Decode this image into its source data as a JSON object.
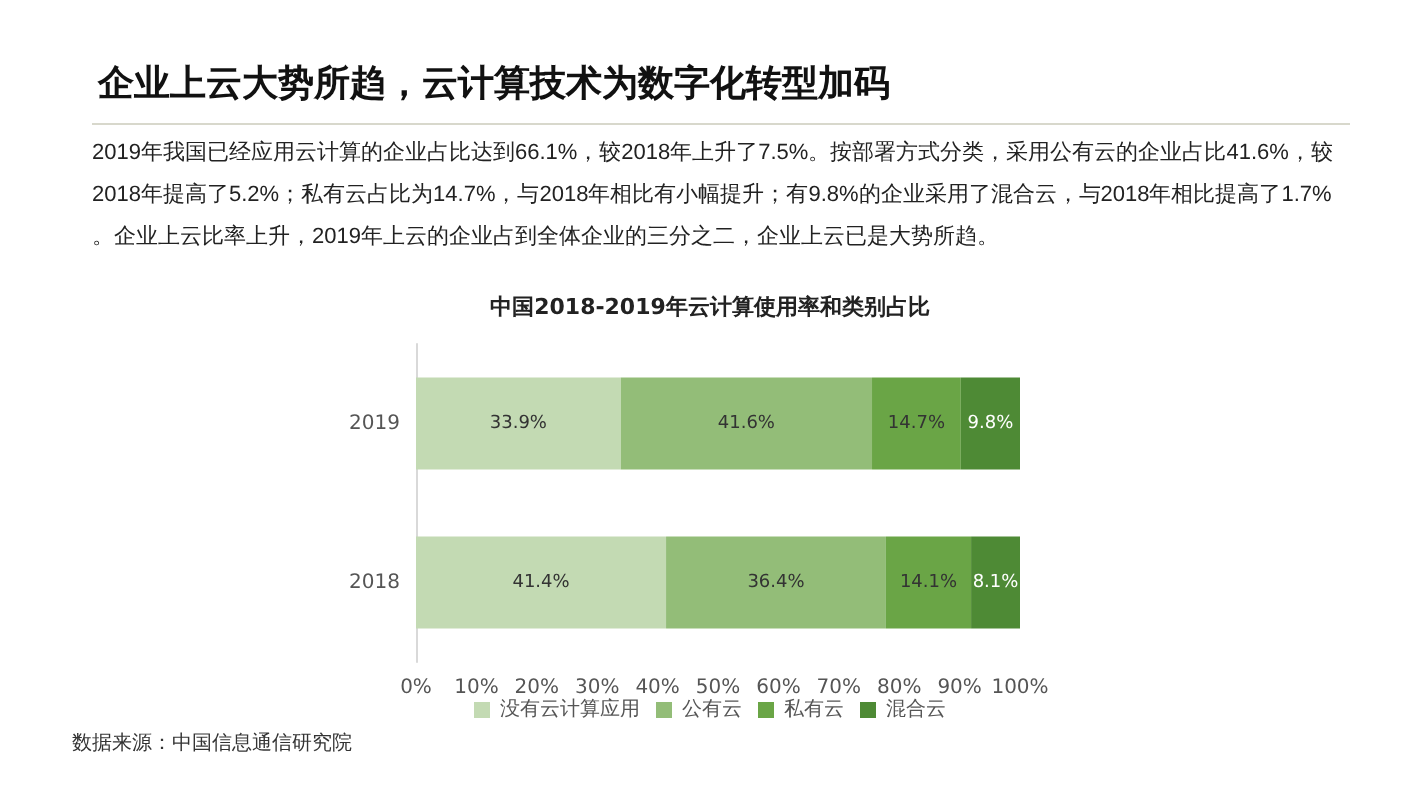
{
  "chart_data": {
    "type": "bar",
    "orientation": "horizontal",
    "stacked": true,
    "title": "企业上云大势所趋，云计算技术为数字化转型加码",
    "subtitle": "2019年我国已经应用云计算的企业占比达到66.1%，较2018年上升了7.5%。按部署方式分类，采用公有云的企业占比41.6%，较2018年提高了5.2%；私有云占比为14.7%，与2018年相比有小幅提升；有9.8%的企业采用了混合云，与2018年相比提高了1.7%。企业上云比率上升，2019年上云的企业占到全体企业的三分之二，企业上云已是大势所趋。",
    "annotations": [
      "中国2018-2019年云计算使用率和类别占比",
      "数据来源：中国信息通信研究院"
    ],
    "categories": [
      "2019",
      "2018"
    ],
    "series": [
      {
        "name": "没有云计算应用",
        "color": "#c3dab3",
        "values": [
          33.9,
          41.4
        ],
        "value_labels": [
          "33.9%",
          "41.4%"
        ]
      },
      {
        "name": "公有云",
        "color": "#93bd78",
        "values": [
          41.6,
          36.4
        ],
        "value_labels": [
          "41.6%",
          "36.4%"
        ]
      },
      {
        "name": "私有云",
        "color": "#6aa546",
        "values": [
          14.7,
          14.1
        ],
        "value_labels": [
          "14.7%",
          "14.1%"
        ]
      },
      {
        "name": "混合云",
        "color": "#4e8a35",
        "values": [
          9.8,
          8.1
        ],
        "value_labels": [
          "9.8%",
          "8.1%"
        ]
      }
    ],
    "xlim": [
      0,
      100
    ],
    "xticks": [
      {
        "value": 0,
        "label": "0%"
      },
      {
        "value": 10,
        "label": "10%"
      },
      {
        "value": 20,
        "label": "20%"
      },
      {
        "value": 30,
        "label": "30%"
      },
      {
        "value": 40,
        "label": "40%"
      },
      {
        "value": 50,
        "label": "50%"
      },
      {
        "value": 60,
        "label": "60%"
      },
      {
        "value": 70,
        "label": "70%"
      },
      {
        "value": 80,
        "label": "80%"
      },
      {
        "value": 90,
        "label": "90%"
      },
      {
        "value": 100,
        "label": "100%"
      }
    ],
    "grid": false,
    "legend": "bottom"
  }
}
